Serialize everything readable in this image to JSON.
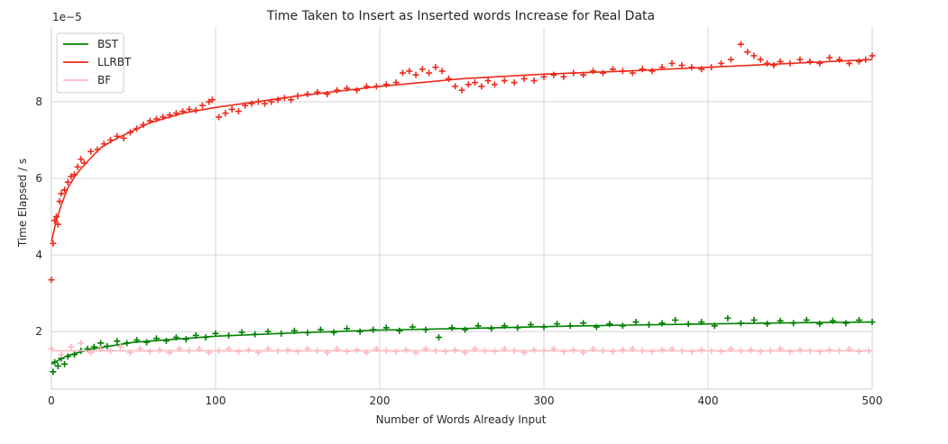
{
  "chart_data": {
    "type": "scatter",
    "title": "Time Taken to Insert as Inserted words Increase for Real Data",
    "xlabel": "Number of Words Already Input",
    "ylabel": "Time Elapsed / s",
    "offset_text": "1e−5",
    "xlim": [
      0,
      500
    ],
    "ylim": [
      0.5,
      9.95
    ],
    "x_ticks": [
      0,
      100,
      200,
      300,
      400,
      500
    ],
    "y_ticks": [
      2,
      4,
      6,
      8
    ],
    "x_tick_labels": [
      "0",
      "100",
      "200",
      "300",
      "400",
      "500"
    ],
    "y_tick_labels": [
      "2",
      "4",
      "6",
      "8"
    ],
    "grid": true,
    "legend_position": "top-left",
    "series": [
      {
        "name": "BST",
        "color": "#008000",
        "marker": "+",
        "fit": [
          [
            0,
            1.15
          ],
          [
            10,
            1.38
          ],
          [
            25,
            1.55
          ],
          [
            50,
            1.72
          ],
          [
            75,
            1.8
          ],
          [
            100,
            1.88
          ],
          [
            150,
            1.97
          ],
          [
            200,
            2.04
          ],
          [
            250,
            2.08
          ],
          [
            300,
            2.13
          ],
          [
            350,
            2.17
          ],
          [
            400,
            2.2
          ],
          [
            450,
            2.23
          ],
          [
            500,
            2.25
          ]
        ],
        "points": [
          [
            1,
            0.95
          ],
          [
            2,
            1.2
          ],
          [
            4,
            1.1
          ],
          [
            6,
            1.3
          ],
          [
            8,
            1.15
          ],
          [
            10,
            1.35
          ],
          [
            14,
            1.4
          ],
          [
            18,
            1.5
          ],
          [
            22,
            1.55
          ],
          [
            26,
            1.6
          ],
          [
            30,
            1.7
          ],
          [
            34,
            1.62
          ],
          [
            40,
            1.75
          ],
          [
            46,
            1.7
          ],
          [
            52,
            1.78
          ],
          [
            58,
            1.72
          ],
          [
            64,
            1.82
          ],
          [
            70,
            1.76
          ],
          [
            76,
            1.85
          ],
          [
            82,
            1.8
          ],
          [
            88,
            1.9
          ],
          [
            94,
            1.85
          ],
          [
            100,
            1.95
          ],
          [
            108,
            1.9
          ],
          [
            116,
            1.98
          ],
          [
            124,
            1.93
          ],
          [
            132,
            2.0
          ],
          [
            140,
            1.95
          ],
          [
            148,
            2.02
          ],
          [
            156,
            1.97
          ],
          [
            164,
            2.05
          ],
          [
            172,
            1.98
          ],
          [
            180,
            2.08
          ],
          [
            188,
            2.0
          ],
          [
            196,
            2.05
          ],
          [
            204,
            2.1
          ],
          [
            212,
            2.02
          ],
          [
            220,
            2.12
          ],
          [
            228,
            2.05
          ],
          [
            236,
            1.85
          ],
          [
            244,
            2.1
          ],
          [
            252,
            2.05
          ],
          [
            260,
            2.15
          ],
          [
            268,
            2.08
          ],
          [
            276,
            2.15
          ],
          [
            284,
            2.1
          ],
          [
            292,
            2.18
          ],
          [
            300,
            2.12
          ],
          [
            308,
            2.2
          ],
          [
            316,
            2.15
          ],
          [
            324,
            2.22
          ],
          [
            332,
            2.12
          ],
          [
            340,
            2.2
          ],
          [
            348,
            2.15
          ],
          [
            356,
            2.25
          ],
          [
            364,
            2.18
          ],
          [
            372,
            2.22
          ],
          [
            380,
            2.3
          ],
          [
            388,
            2.2
          ],
          [
            396,
            2.25
          ],
          [
            404,
            2.15
          ],
          [
            412,
            2.35
          ],
          [
            420,
            2.22
          ],
          [
            428,
            2.3
          ],
          [
            436,
            2.2
          ],
          [
            444,
            2.28
          ],
          [
            452,
            2.22
          ],
          [
            460,
            2.3
          ],
          [
            468,
            2.2
          ],
          [
            476,
            2.28
          ],
          [
            484,
            2.22
          ],
          [
            492,
            2.3
          ],
          [
            500,
            2.25
          ]
        ]
      },
      {
        "name": "LLRBT",
        "color": "#ee2a1c",
        "marker": "+",
        "fit": [
          [
            0,
            4.35
          ],
          [
            3,
            4.9
          ],
          [
            6,
            5.3
          ],
          [
            10,
            5.75
          ],
          [
            15,
            6.1
          ],
          [
            20,
            6.35
          ],
          [
            30,
            6.8
          ],
          [
            40,
            7.05
          ],
          [
            50,
            7.25
          ],
          [
            60,
            7.45
          ],
          [
            80,
            7.7
          ],
          [
            100,
            7.85
          ],
          [
            150,
            8.15
          ],
          [
            200,
            8.4
          ],
          [
            250,
            8.6
          ],
          [
            300,
            8.72
          ],
          [
            350,
            8.8
          ],
          [
            400,
            8.9
          ],
          [
            450,
            9.0
          ],
          [
            500,
            9.1
          ]
        ],
        "points": [
          [
            0,
            3.35
          ],
          [
            1,
            4.3
          ],
          [
            2,
            4.9
          ],
          [
            3,
            5.0
          ],
          [
            4,
            4.8
          ],
          [
            5,
            5.4
          ],
          [
            6,
            5.6
          ],
          [
            8,
            5.7
          ],
          [
            10,
            5.9
          ],
          [
            12,
            6.05
          ],
          [
            14,
            6.1
          ],
          [
            16,
            6.3
          ],
          [
            18,
            6.5
          ],
          [
            20,
            6.4
          ],
          [
            24,
            6.7
          ],
          [
            28,
            6.75
          ],
          [
            32,
            6.9
          ],
          [
            36,
            7.0
          ],
          [
            40,
            7.1
          ],
          [
            44,
            7.05
          ],
          [
            48,
            7.2
          ],
          [
            52,
            7.3
          ],
          [
            56,
            7.4
          ],
          [
            60,
            7.5
          ],
          [
            64,
            7.55
          ],
          [
            68,
            7.6
          ],
          [
            72,
            7.65
          ],
          [
            76,
            7.7
          ],
          [
            80,
            7.75
          ],
          [
            84,
            7.8
          ],
          [
            88,
            7.78
          ],
          [
            92,
            7.9
          ],
          [
            96,
            8.0
          ],
          [
            98,
            8.05
          ],
          [
            102,
            7.6
          ],
          [
            106,
            7.7
          ],
          [
            110,
            7.8
          ],
          [
            114,
            7.75
          ],
          [
            118,
            7.9
          ],
          [
            122,
            7.95
          ],
          [
            126,
            8.0
          ],
          [
            130,
            7.95
          ],
          [
            134,
            8.0
          ],
          [
            138,
            8.05
          ],
          [
            142,
            8.1
          ],
          [
            146,
            8.05
          ],
          [
            150,
            8.15
          ],
          [
            156,
            8.2
          ],
          [
            162,
            8.25
          ],
          [
            168,
            8.2
          ],
          [
            174,
            8.3
          ],
          [
            180,
            8.35
          ],
          [
            186,
            8.3
          ],
          [
            192,
            8.4
          ],
          [
            198,
            8.4
          ],
          [
            204,
            8.45
          ],
          [
            210,
            8.5
          ],
          [
            214,
            8.75
          ],
          [
            218,
            8.8
          ],
          [
            222,
            8.7
          ],
          [
            226,
            8.85
          ],
          [
            230,
            8.75
          ],
          [
            234,
            8.9
          ],
          [
            238,
            8.8
          ],
          [
            242,
            8.6
          ],
          [
            246,
            8.4
          ],
          [
            250,
            8.3
          ],
          [
            254,
            8.45
          ],
          [
            258,
            8.5
          ],
          [
            262,
            8.4
          ],
          [
            266,
            8.55
          ],
          [
            270,
            8.45
          ],
          [
            276,
            8.55
          ],
          [
            282,
            8.5
          ],
          [
            288,
            8.6
          ],
          [
            294,
            8.55
          ],
          [
            300,
            8.65
          ],
          [
            306,
            8.7
          ],
          [
            312,
            8.65
          ],
          [
            318,
            8.75
          ],
          [
            324,
            8.7
          ],
          [
            330,
            8.8
          ],
          [
            336,
            8.75
          ],
          [
            342,
            8.85
          ],
          [
            348,
            8.8
          ],
          [
            354,
            8.75
          ],
          [
            360,
            8.85
          ],
          [
            366,
            8.8
          ],
          [
            372,
            8.9
          ],
          [
            378,
            9.0
          ],
          [
            384,
            8.95
          ],
          [
            390,
            8.9
          ],
          [
            396,
            8.85
          ],
          [
            402,
            8.9
          ],
          [
            408,
            9.0
          ],
          [
            414,
            9.1
          ],
          [
            420,
            9.5
          ],
          [
            424,
            9.3
          ],
          [
            428,
            9.2
          ],
          [
            432,
            9.1
          ],
          [
            436,
            9.0
          ],
          [
            440,
            8.95
          ],
          [
            444,
            9.05
          ],
          [
            450,
            9.0
          ],
          [
            456,
            9.1
          ],
          [
            462,
            9.05
          ],
          [
            468,
            9.0
          ],
          [
            474,
            9.15
          ],
          [
            480,
            9.1
          ],
          [
            486,
            9.0
          ],
          [
            492,
            9.05
          ],
          [
            496,
            9.1
          ],
          [
            500,
            9.2
          ]
        ]
      },
      {
        "name": "BF",
        "color": "#ffb6c1",
        "marker": "+",
        "fit": [
          [
            0,
            1.5
          ],
          [
            50,
            1.5
          ],
          [
            100,
            1.5
          ],
          [
            150,
            1.5
          ],
          [
            200,
            1.5
          ],
          [
            250,
            1.5
          ],
          [
            300,
            1.5
          ],
          [
            350,
            1.5
          ],
          [
            400,
            1.5
          ],
          [
            450,
            1.5
          ],
          [
            500,
            1.5
          ]
        ],
        "points": [
          [
            0,
            1.55
          ],
          [
            6,
            1.4
          ],
          [
            12,
            1.6
          ],
          [
            18,
            1.7
          ],
          [
            24,
            1.45
          ],
          [
            30,
            1.55
          ],
          [
            36,
            1.5
          ],
          [
            42,
            1.6
          ],
          [
            48,
            1.45
          ],
          [
            54,
            1.55
          ],
          [
            60,
            1.48
          ],
          [
            66,
            1.52
          ],
          [
            72,
            1.45
          ],
          [
            78,
            1.55
          ],
          [
            84,
            1.5
          ],
          [
            90,
            1.55
          ],
          [
            96,
            1.45
          ],
          [
            102,
            1.5
          ],
          [
            108,
            1.55
          ],
          [
            114,
            1.48
          ],
          [
            120,
            1.52
          ],
          [
            126,
            1.45
          ],
          [
            132,
            1.55
          ],
          [
            138,
            1.5
          ],
          [
            144,
            1.52
          ],
          [
            150,
            1.48
          ],
          [
            156,
            1.55
          ],
          [
            162,
            1.5
          ],
          [
            168,
            1.45
          ],
          [
            174,
            1.55
          ],
          [
            180,
            1.48
          ],
          [
            186,
            1.52
          ],
          [
            192,
            1.45
          ],
          [
            198,
            1.55
          ],
          [
            204,
            1.5
          ],
          [
            210,
            1.48
          ],
          [
            216,
            1.52
          ],
          [
            222,
            1.45
          ],
          [
            228,
            1.55
          ],
          [
            234,
            1.5
          ],
          [
            240,
            1.48
          ],
          [
            246,
            1.52
          ],
          [
            252,
            1.45
          ],
          [
            258,
            1.55
          ],
          [
            264,
            1.5
          ],
          [
            270,
            1.48
          ],
          [
            276,
            1.55
          ],
          [
            282,
            1.5
          ],
          [
            288,
            1.45
          ],
          [
            294,
            1.52
          ],
          [
            300,
            1.5
          ],
          [
            306,
            1.55
          ],
          [
            312,
            1.48
          ],
          [
            318,
            1.52
          ],
          [
            324,
            1.45
          ],
          [
            330,
            1.55
          ],
          [
            336,
            1.5
          ],
          [
            342,
            1.48
          ],
          [
            348,
            1.52
          ],
          [
            354,
            1.55
          ],
          [
            360,
            1.5
          ],
          [
            366,
            1.48
          ],
          [
            372,
            1.52
          ],
          [
            378,
            1.55
          ],
          [
            384,
            1.5
          ],
          [
            390,
            1.48
          ],
          [
            396,
            1.52
          ],
          [
            402,
            1.5
          ],
          [
            408,
            1.48
          ],
          [
            414,
            1.55
          ],
          [
            420,
            1.5
          ],
          [
            426,
            1.52
          ],
          [
            432,
            1.48
          ],
          [
            438,
            1.5
          ],
          [
            444,
            1.55
          ],
          [
            450,
            1.48
          ],
          [
            456,
            1.52
          ],
          [
            462,
            1.5
          ],
          [
            468,
            1.48
          ],
          [
            474,
            1.52
          ],
          [
            480,
            1.5
          ],
          [
            486,
            1.55
          ],
          [
            492,
            1.48
          ],
          [
            498,
            1.5
          ]
        ]
      }
    ]
  }
}
